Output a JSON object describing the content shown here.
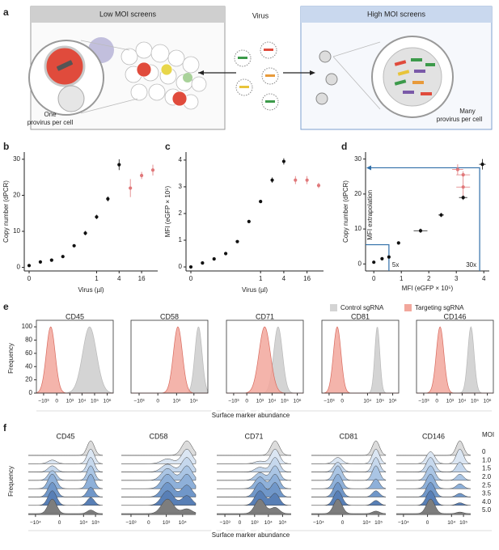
{
  "a": {
    "label": "a",
    "left_title": "Low MOI screens",
    "center_title": "Virus",
    "right_title": "High MOI screens",
    "left_caption": [
      "One",
      "provirus per cell"
    ],
    "right_caption": [
      "Many",
      "provirus per cell"
    ]
  },
  "b": {
    "label": "b",
    "x_label": "Virus (µl)",
    "y_label": "Copy number (dPCR)",
    "categories": [
      "0",
      null,
      null,
      null,
      null,
      null,
      "1",
      null,
      "4",
      null,
      "16",
      null
    ],
    "values": [
      0.5,
      1.5,
      2,
      3,
      6,
      9.5,
      14,
      19,
      28.5,
      22,
      25.5,
      27
    ],
    "errors": [
      null,
      null,
      null,
      null,
      null,
      0.6,
      0.6,
      0.7,
      1.5,
      2.5,
      1,
      1.5
    ],
    "colors": [
      "#111",
      "#111",
      "#111",
      "#111",
      "#111",
      "#111",
      "#111",
      "#111",
      "#111",
      "#e0787a",
      "#e0787a",
      "#e0787a"
    ],
    "ylim": [
      -1,
      32
    ],
    "yticks": [
      0,
      10,
      20,
      30
    ]
  },
  "c": {
    "label": "c",
    "x_label": "Virus (µl)",
    "y_label": "MFI (eGFP × 10⁵)",
    "categories": [
      "0",
      null,
      null,
      null,
      null,
      null,
      "1",
      null,
      "4",
      null,
      "16",
      null
    ],
    "values": [
      0,
      0.15,
      0.3,
      0.5,
      0.95,
      1.7,
      2.45,
      3.25,
      3.95,
      3.25,
      3.25,
      3.05
    ],
    "errors": [
      null,
      null,
      null,
      null,
      null,
      0.05,
      0.05,
      0.1,
      0.12,
      0.15,
      0.15,
      0.1
    ],
    "colors": [
      "#111",
      "#111",
      "#111",
      "#111",
      "#111",
      "#111",
      "#111",
      "#111",
      "#111",
      "#e0787a",
      "#e0787a",
      "#e0787a"
    ],
    "ylim": [
      -0.15,
      4.3
    ],
    "yticks": [
      0,
      1,
      2,
      3,
      4
    ]
  },
  "d": {
    "label": "d",
    "x_label": "MFI (eGFP × 10⁵)",
    "y_label": "Copy number (dPCR)",
    "annotation": "MFI extrapolation",
    "small_fold": "5x",
    "large_fold": "30x",
    "guide_color": "#2f6ea8",
    "x": [
      0,
      0.3,
      0.55,
      0.9,
      1.7,
      2.45,
      3.25,
      3.95,
      3.25,
      3.25,
      3.05
    ],
    "y": [
      0.5,
      1.5,
      2,
      6,
      9.5,
      14,
      19,
      28.5,
      22,
      25.5,
      27
    ],
    "x_errors": [
      null,
      null,
      null,
      null,
      0.25,
      0.1,
      0.15,
      0.12,
      0.25,
      0.25,
      0.2
    ],
    "y_errors": [
      null,
      null,
      null,
      null,
      0.6,
      0.6,
      0.7,
      1.5,
      2.5,
      1,
      1.5
    ],
    "colors": [
      "#111",
      "#111",
      "#111",
      "#111",
      "#111",
      "#111",
      "#111",
      "#111",
      "#e0787a",
      "#e0787a",
      "#e0787a"
    ],
    "small_guide": [
      0.55,
      5.5
    ],
    "large_guide": [
      3.85,
      27.5
    ],
    "xlim": [
      -0.3,
      4.2
    ],
    "xticks": [
      0,
      1,
      2,
      3,
      4
    ],
    "ylim": [
      -2,
      32
    ],
    "yticks": [
      0,
      10,
      20,
      30
    ]
  },
  "e": {
    "label": "e",
    "x_label": "Surface marker abundance",
    "y_label": "Frequency",
    "legend": [
      {
        "name": "Control sgRNA",
        "color": "#d4d4d4"
      },
      {
        "name": "Targeting sgRNA",
        "color": "#f2a79c"
      }
    ],
    "ylim": [
      0,
      105
    ],
    "yticks": [
      0,
      20,
      40,
      60,
      80,
      100
    ],
    "panels": [
      {
        "title": "CD45",
        "xlim": [
          -4000,
          3000000
        ],
        "control": {
          "center": 40000,
          "spread": 0.55
        },
        "targeting": {
          "center": -200,
          "spread": 0.35
        },
        "xticks": [
          {
            "value": -1000,
            "label": "−10³"
          },
          0,
          {
            "value": 1000,
            "label": "10³"
          },
          {
            "value": 10000,
            "label": "10⁴"
          },
          {
            "value": 100000,
            "label": "10⁵"
          },
          {
            "value": 1000000,
            "label": "10⁶"
          }
        ]
      },
      {
        "title": "CD58",
        "xlim": [
          -3000,
          60000
        ],
        "control": {
          "center": 18000,
          "spread": 0.2
        },
        "targeting": {
          "center": 1200,
          "spread": 0.25
        },
        "xticks": [
          {
            "value": -1000,
            "label": "−10³"
          },
          0,
          {
            "value": 1000,
            "label": "10³"
          },
          {
            "value": 10000,
            "label": "10⁴"
          }
        ]
      },
      {
        "title": "CD71",
        "xlim": [
          -4000,
          3000000
        ],
        "control": {
          "center": 30000,
          "spread": 0.35
        },
        "targeting": {
          "center": 2500,
          "spread": 0.45
        },
        "xticks": [
          {
            "value": -1000,
            "label": "−10³"
          },
          0,
          {
            "value": 1000,
            "label": "10³"
          },
          {
            "value": 10000,
            "label": "10⁴"
          },
          {
            "value": 100000,
            "label": "10⁵"
          },
          {
            "value": 1000000,
            "label": "10⁶"
          }
        ]
      },
      {
        "title": "CD81",
        "xlim": [
          -4000,
          3000000
        ],
        "control": {
          "center": 60000,
          "spread": 0.2
        },
        "targeting": {
          "center": -150,
          "spread": 0.3
        },
        "xticks": [
          {
            "value": -1000,
            "label": "−10³"
          },
          0,
          {
            "value": 10000,
            "label": "10⁴"
          },
          {
            "value": 100000,
            "label": "10⁵"
          },
          {
            "value": 1000000,
            "label": "10⁶"
          }
        ]
      },
      {
        "title": "CD146",
        "xlim": [
          -4000,
          3000000
        ],
        "control": {
          "center": 50000,
          "spread": 0.25
        },
        "targeting": {
          "center": 80,
          "spread": 0.3
        },
        "xticks": [
          {
            "value": -1000,
            "label": "−10³"
          },
          0,
          {
            "value": 1000,
            "label": "10³"
          },
          {
            "value": 10000,
            "label": "10⁴"
          },
          {
            "value": 100000,
            "label": "10⁵"
          },
          {
            "value": 1000000,
            "label": "10⁶"
          }
        ]
      }
    ]
  },
  "f": {
    "label": "f",
    "x_label": "Surface marker abundance",
    "y_label": "Frequency",
    "moi_title": "MOI",
    "moi": [
      0,
      {
        "value": 1,
        "label": "1.0"
      },
      1.5,
      {
        "value": 2,
        "label": "2.0"
      },
      2.5,
      3.5,
      {
        "value": 4,
        "label": "4.0"
      },
      {
        "value": 5,
        "label": "5.0"
      }
    ],
    "colors": [
      "#dcdcdc",
      "#dbe6f3",
      "#c6d8ed",
      "#aac5e4",
      "#8eb0d9",
      "#7097c9",
      "#587fb6",
      "#7d7d7d"
    ],
    "panels": [
      {
        "title": "CD45",
        "xlim": [
          -40000,
          400000
        ],
        "negative": -300,
        "positive": 40000,
        "positive_fraction": [
          1,
          0.8,
          0.7,
          0.6,
          0.5,
          0.4,
          0.35,
          0.2
        ],
        "xticks": [
          {
            "value": -10000,
            "label": "−10⁴"
          },
          0,
          {
            "value": 10000,
            "label": "10⁴"
          },
          {
            "value": 100000,
            "label": "10⁵"
          }
        ]
      },
      {
        "title": "CD58",
        "xlim": [
          -4000,
          60000
        ],
        "negative": 1200,
        "positive": 18000,
        "positive_fraction": [
          1,
          0.75,
          0.65,
          0.55,
          0.5,
          0.45,
          0.4,
          0.25
        ],
        "xticks": [
          {
            "value": -1000,
            "label": "−10³"
          },
          0,
          {
            "value": 1000,
            "label": "10³"
          },
          {
            "value": 10000,
            "label": "10⁴"
          }
        ]
      },
      {
        "title": "CD71",
        "xlim": [
          -4000,
          400000
        ],
        "negative": 2500,
        "positive": 30000,
        "positive_fraction": [
          1,
          0.85,
          0.75,
          0.65,
          0.55,
          0.5,
          0.45,
          0.3
        ],
        "xticks": [
          {
            "value": -1000,
            "label": "−10³"
          },
          0,
          {
            "value": 1000,
            "label": "10³"
          },
          {
            "value": 10000,
            "label": "10⁴"
          },
          {
            "value": 100000,
            "label": "10⁵"
          }
        ]
      },
      {
        "title": "CD81",
        "xlim": [
          -40000,
          400000
        ],
        "negative": -150,
        "positive": 60000,
        "positive_fraction": [
          1,
          0.7,
          0.6,
          0.5,
          0.4,
          0.3,
          0.25,
          0.15
        ],
        "xticks": [
          {
            "value": -10000,
            "label": "−10⁴"
          },
          0,
          {
            "value": 10000,
            "label": "10⁴"
          },
          {
            "value": 100000,
            "label": "10⁵"
          }
        ]
      },
      {
        "title": "CD146",
        "xlim": [
          -40000,
          400000
        ],
        "negative": 80,
        "positive": 50000,
        "positive_fraction": [
          1,
          0.55,
          0.4,
          0.3,
          0.25,
          0.2,
          0.15,
          0.1
        ],
        "xticks": [
          {
            "value": -10000,
            "label": "−10⁴"
          },
          0,
          {
            "value": 10000,
            "label": "10⁴"
          },
          {
            "value": 100000,
            "label": "10⁵"
          }
        ]
      }
    ]
  }
}
